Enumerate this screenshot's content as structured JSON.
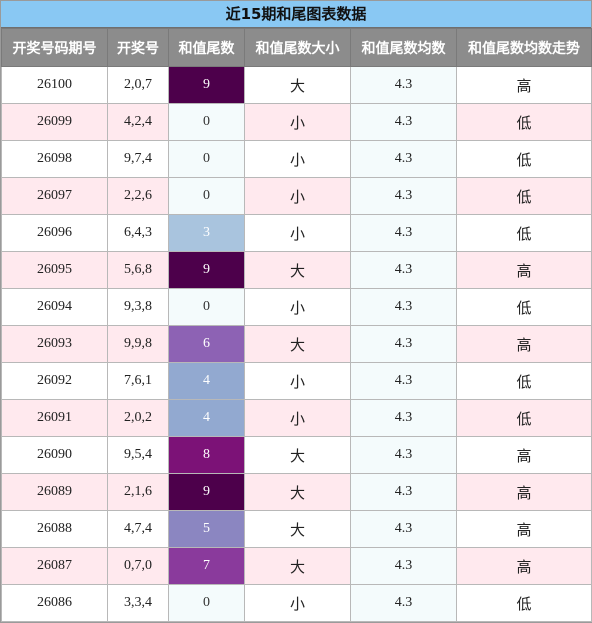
{
  "title": "近15期和尾图表数据",
  "headers": [
    "开奖号码期号",
    "开奖号",
    "和值尾数",
    "和值尾数大小",
    "和值尾数均数",
    "和值尾数均数走势"
  ],
  "colors": {
    "title_bg": "#89c8f3",
    "header_bg": "#8c8c8c",
    "row_even_bg": "#ffe9ee",
    "row_odd_bg": "#ffffff",
    "pale_cell_bg": "#f4fbfc",
    "sum_tail_colors": {
      "0": "#f4fbfc",
      "3": "#a9c4de",
      "4": "#92a9d0",
      "5": "#8b86c1",
      "6": "#8d62b4",
      "7": "#8a3a9c",
      "8": "#7c1277",
      "9": "#4d004b"
    }
  },
  "rows": [
    {
      "period": "26100",
      "numbers": "2,0,7",
      "sum_tail": "9",
      "size": "大",
      "avg": "4.3",
      "trend": "高"
    },
    {
      "period": "26099",
      "numbers": "4,2,4",
      "sum_tail": "0",
      "size": "小",
      "avg": "4.3",
      "trend": "低"
    },
    {
      "period": "26098",
      "numbers": "9,7,4",
      "sum_tail": "0",
      "size": "小",
      "avg": "4.3",
      "trend": "低"
    },
    {
      "period": "26097",
      "numbers": "2,2,6",
      "sum_tail": "0",
      "size": "小",
      "avg": "4.3",
      "trend": "低"
    },
    {
      "period": "26096",
      "numbers": "6,4,3",
      "sum_tail": "3",
      "size": "小",
      "avg": "4.3",
      "trend": "低"
    },
    {
      "period": "26095",
      "numbers": "5,6,8",
      "sum_tail": "9",
      "size": "大",
      "avg": "4.3",
      "trend": "高"
    },
    {
      "period": "26094",
      "numbers": "9,3,8",
      "sum_tail": "0",
      "size": "小",
      "avg": "4.3",
      "trend": "低"
    },
    {
      "period": "26093",
      "numbers": "9,9,8",
      "sum_tail": "6",
      "size": "大",
      "avg": "4.3",
      "trend": "高"
    },
    {
      "period": "26092",
      "numbers": "7,6,1",
      "sum_tail": "4",
      "size": "小",
      "avg": "4.3",
      "trend": "低"
    },
    {
      "period": "26091",
      "numbers": "2,0,2",
      "sum_tail": "4",
      "size": "小",
      "avg": "4.3",
      "trend": "低"
    },
    {
      "period": "26090",
      "numbers": "9,5,4",
      "sum_tail": "8",
      "size": "大",
      "avg": "4.3",
      "trend": "高"
    },
    {
      "period": "26089",
      "numbers": "2,1,6",
      "sum_tail": "9",
      "size": "大",
      "avg": "4.3",
      "trend": "高"
    },
    {
      "period": "26088",
      "numbers": "4,7,4",
      "sum_tail": "5",
      "size": "大",
      "avg": "4.3",
      "trend": "高"
    },
    {
      "period": "26087",
      "numbers": "0,7,0",
      "sum_tail": "7",
      "size": "大",
      "avg": "4.3",
      "trend": "高"
    },
    {
      "period": "26086",
      "numbers": "3,3,4",
      "sum_tail": "0",
      "size": "小",
      "avg": "4.3",
      "trend": "低"
    }
  ]
}
